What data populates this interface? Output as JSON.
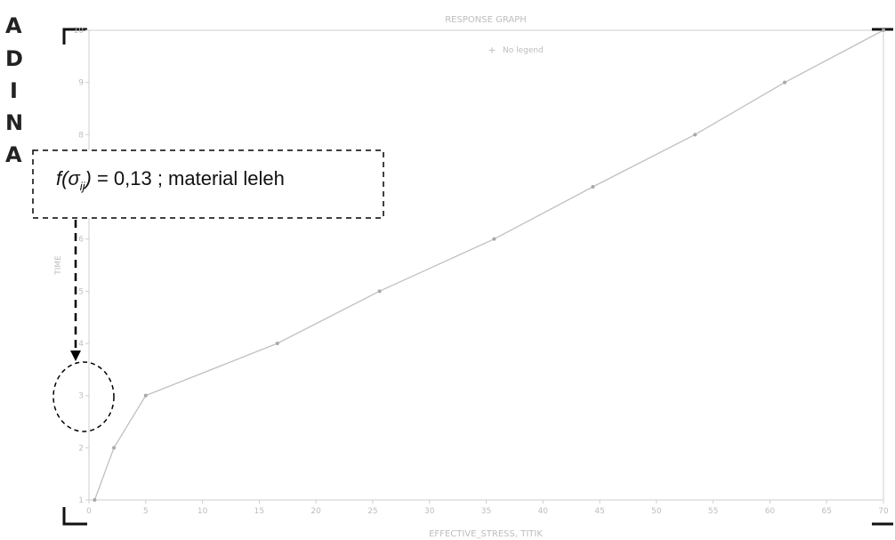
{
  "logo": {
    "letters": [
      "A",
      "D",
      "I",
      "N",
      "A"
    ]
  },
  "chart_data": {
    "type": "line",
    "title": "RESPONSE GRAPH",
    "xlabel": "EFFECTIVE_STRESS, TITIK",
    "ylabel": "TIME",
    "legend": {
      "label": "No legend",
      "placement": "top-center"
    },
    "xlim": [
      0,
      70
    ],
    "ylim": [
      1,
      10
    ],
    "xticks": [
      0,
      5,
      10,
      15,
      20,
      25,
      30,
      35,
      40,
      45,
      50,
      55,
      60,
      65,
      70
    ],
    "yticks": [
      1,
      2,
      3,
      4,
      5,
      6,
      7,
      8,
      9,
      10
    ],
    "grid": false,
    "series": [
      {
        "x": [
          0.5,
          2.2,
          5.0,
          16.6,
          25.6,
          35.7,
          44.4,
          53.4,
          61.3,
          70.0
        ],
        "y": [
          1,
          2,
          3,
          4,
          5,
          6,
          7,
          8,
          9,
          10
        ]
      }
    ],
    "colors": {
      "line": "#c0c0c0",
      "frame": "#cfcfcf",
      "text": "#bdbdbd"
    },
    "annotation": {
      "text_prefix": "f(σ",
      "text_subscript": "ij",
      "text_suffix": ") = 0,13 ; material leleh",
      "target": {
        "x": 0,
        "y": 3
      }
    }
  }
}
